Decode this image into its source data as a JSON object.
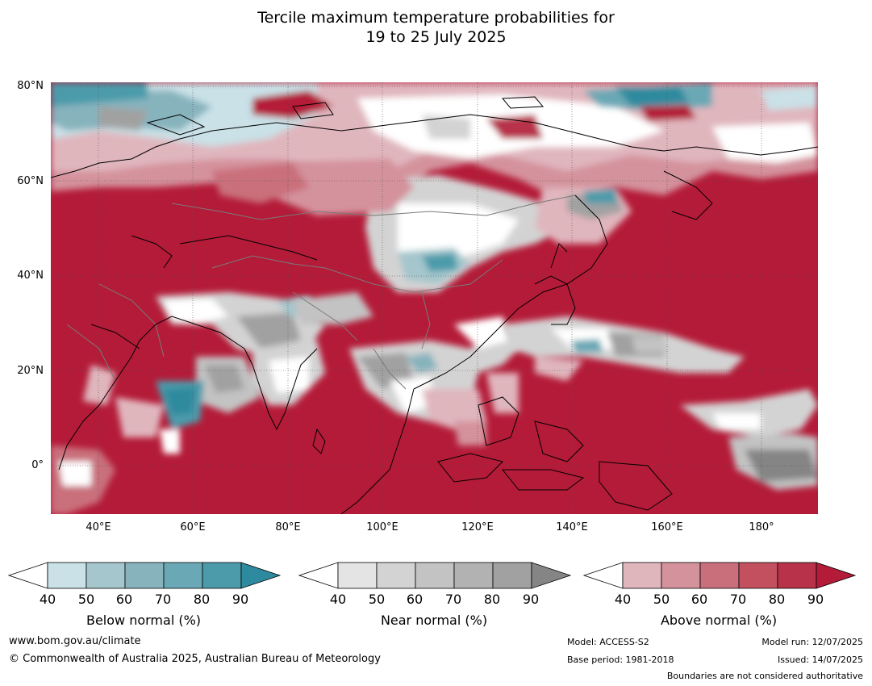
{
  "title": {
    "line1": "Tercile maximum temperature probabilities for",
    "line2": "19 to 25 July 2025"
  },
  "map": {
    "lat_labels": [
      "80°N",
      "60°N",
      "40°N",
      "20°N",
      "0°"
    ],
    "lon_labels": [
      "40°E",
      "60°E",
      "80°E",
      "100°E",
      "120°E",
      "140°E",
      "160°E",
      "180°"
    ],
    "colors": {
      "ocean_above": "#b41b38",
      "coastline": "#000000",
      "border": "#7a7a7a",
      "grid": "#555555"
    }
  },
  "colorbars": [
    {
      "label": "Below normal (%)",
      "ticks": [
        "40",
        "50",
        "60",
        "70",
        "80",
        "90"
      ],
      "colors": [
        "#ffffff",
        "#c9e1e7",
        "#a4c6cc",
        "#87b3bd",
        "#6aa8b5",
        "#4b9bab",
        "#2e8a9e"
      ]
    },
    {
      "label": "Near normal (%)",
      "ticks": [
        "40",
        "50",
        "60",
        "70",
        "80",
        "90"
      ],
      "colors": [
        "#ffffff",
        "#e4e4e4",
        "#d3d3d3",
        "#c3c3c3",
        "#b2b2b2",
        "#a1a1a1",
        "#858585"
      ]
    },
    {
      "label": "Above normal (%)",
      "ticks": [
        "40",
        "50",
        "60",
        "70",
        "80",
        "90"
      ],
      "colors": [
        "#ffffff",
        "#e0b6bd",
        "#d4929c",
        "#c96f7c",
        "#c3505f",
        "#b8334a",
        "#b41b38"
      ]
    }
  ],
  "footer": {
    "website": "www.bom.gov.au/climate",
    "copyright": "© Commonwealth of Australia 2025, Australian Bureau of Meteorology",
    "model": "Model: ACCESS-S2",
    "base_period": "Base period: 1981-2018",
    "model_run": "Model run: 12/07/2025",
    "issued": "Issued: 14/07/2025",
    "disclaimer": "Boundaries are not considered authoritative"
  }
}
